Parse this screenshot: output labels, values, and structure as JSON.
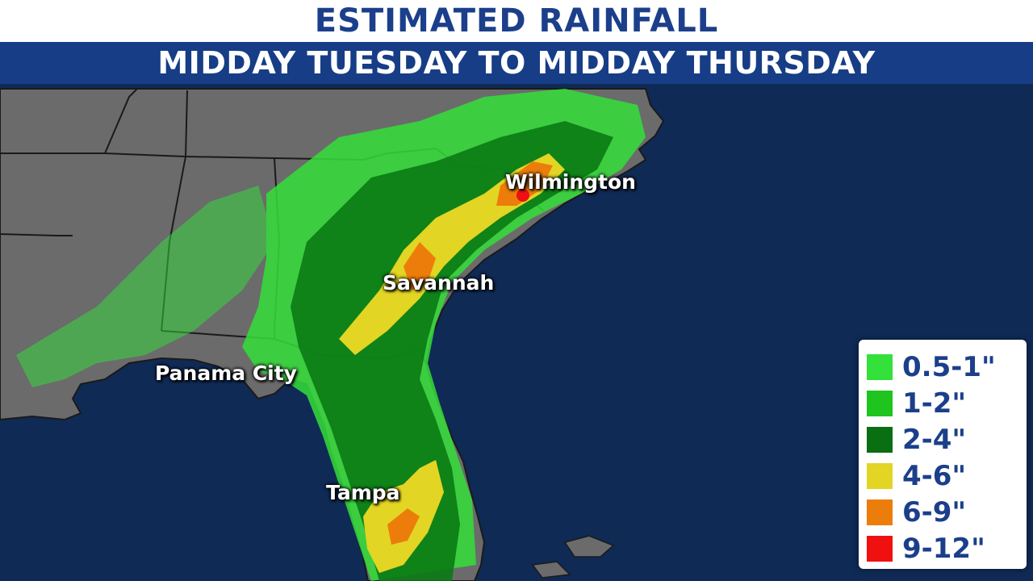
{
  "header": {
    "title": "ESTIMATED RAINFALL",
    "subtitle": "MIDDAY TUESDAY TO MIDDAY THURSDAY"
  },
  "cities": {
    "wilmington": "Wilmington",
    "savannah": "Savannah",
    "panama_city": "Panama City",
    "tampa": "Tampa"
  },
  "legend": {
    "items": [
      {
        "label": "0.5-1\"",
        "color": "#34e03a"
      },
      {
        "label": "1-2\"",
        "color": "#1fc41f"
      },
      {
        "label": "2-4\"",
        "color": "#0a6e12"
      },
      {
        "label": "4-6\"",
        "color": "#e2d523"
      },
      {
        "label": "6-9\"",
        "color": "#ec7d0b"
      },
      {
        "label": "9-12\"",
        "color": "#f01010"
      }
    ]
  },
  "colors": {
    "ocean": "#0f2a55",
    "land": "#6d6d6d",
    "title_text": "#1b3f8a",
    "subtitle_bar": "#163d86"
  }
}
